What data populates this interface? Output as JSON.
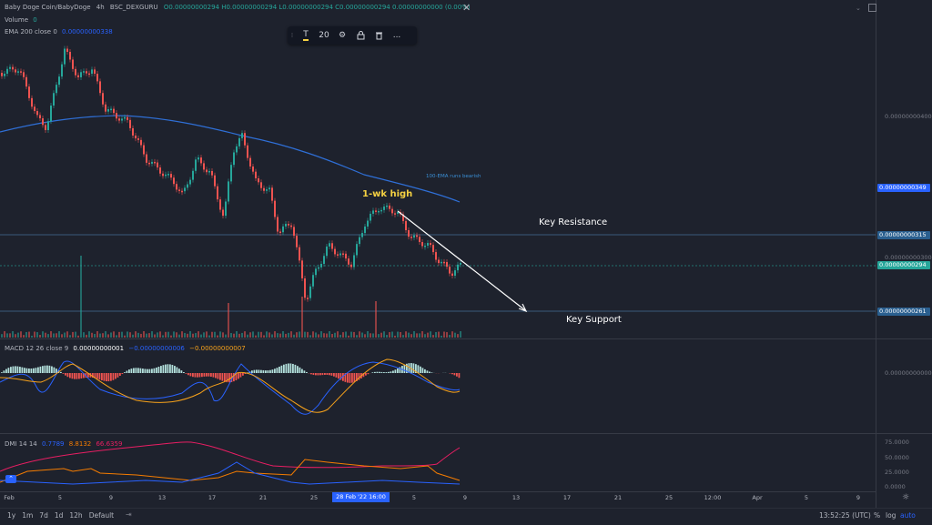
{
  "legend": {
    "symbol": "Baby Doge Coin/BabyDoge",
    "interval": "4h",
    "exchange": "BSC_DEXGURU",
    "ohlc": "O0.00000000294  H0.00000000294  L0.00000000294  C0.00000000294  0.00000000000 (0.00%)",
    "volume_label": "Volume",
    "volume_value": "0",
    "ema_label": "EMA 200 close 0",
    "ema_value": "0.00000000338"
  },
  "toolbar": {
    "text_tool": "T",
    "size": "20",
    "settings": "gear-icon",
    "lock": "lock-icon",
    "delete": "trash-icon",
    "more": "..."
  },
  "annotations": {
    "high": "1-wk high",
    "ema_note": "100-EMA runs bearish",
    "resistance": "Key Resistance",
    "support": "Key Support"
  },
  "price_axis": {
    "tick_400": "0.00000000400",
    "tag_349": "0.00000000349",
    "tag_315": "0.00000000315",
    "tick_300": "0.00000000300",
    "tag_294": "0.00000000294",
    "tag_261": "0.00000000261"
  },
  "macd": {
    "label": "MACD 12 26 close 9",
    "v1": "0.00000000001",
    "v2": "−0.00000000006",
    "v3": "−0.00000000007",
    "axis": "0.00000000000"
  },
  "dmi": {
    "label": "DMI 14 14",
    "v1": "0.7789",
    "v2": "8.8132",
    "v3": "66.6359",
    "ticks": [
      "75.0000",
      "50.0000",
      "25.0000",
      "0.0000"
    ]
  },
  "x_axis": [
    "Feb",
    "5",
    "9",
    "13",
    "17",
    "21",
    "25",
    "5",
    "9",
    "13",
    "17",
    "21",
    "25",
    "12:00",
    "Apr",
    "5",
    "9"
  ],
  "x_highlight": "28 Feb '22  16:00",
  "bottom": {
    "ranges": [
      "1y",
      "1m",
      "7d",
      "1d",
      "12h",
      "Default"
    ],
    "time": "13:52:25 (UTC)",
    "percent": "%",
    "log": "log",
    "auto": "auto"
  },
  "colors": {
    "up": "#26a69a",
    "down": "#ef5350",
    "ema": "#2962ff",
    "accent": "#2962ff",
    "note": "#f5d142"
  }
}
